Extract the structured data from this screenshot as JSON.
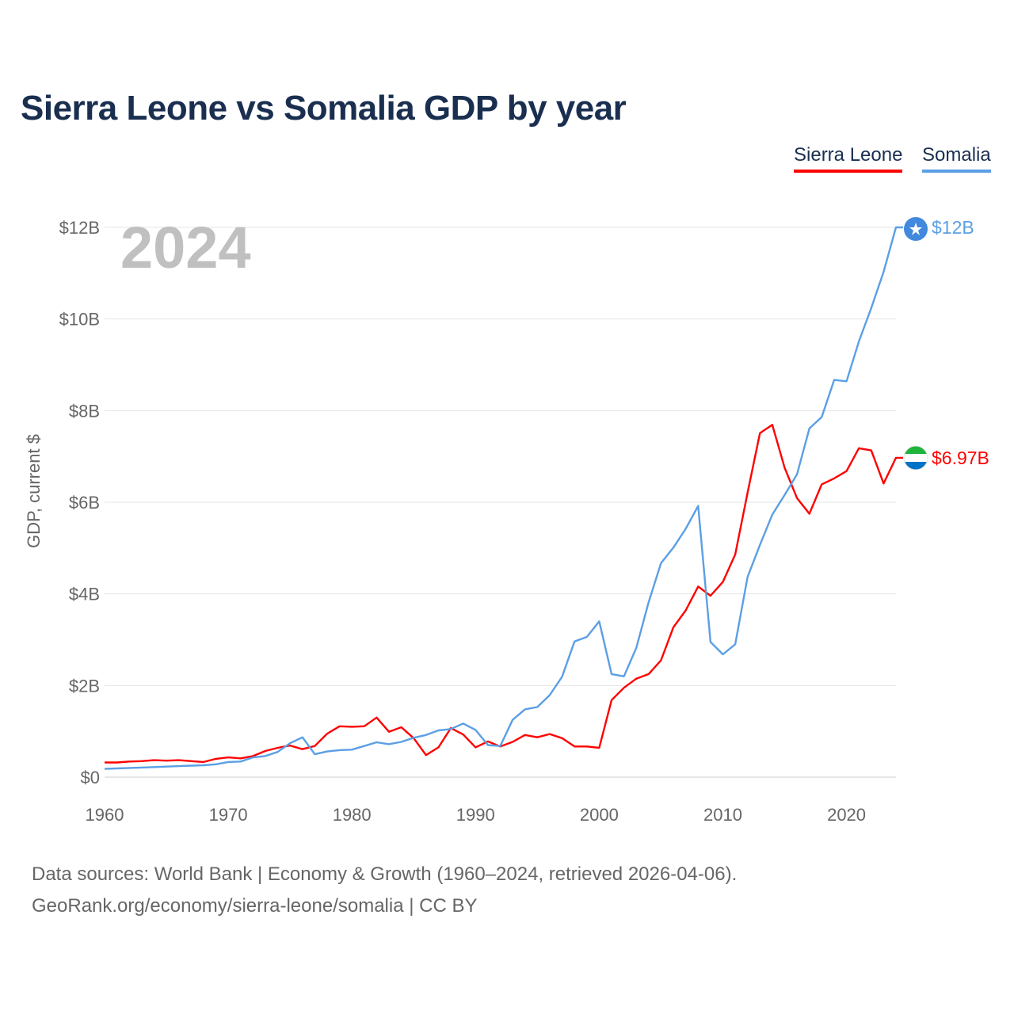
{
  "header": {
    "title": "Sierra Leone vs Somalia GDP by year"
  },
  "legend": [
    {
      "label": "Sierra Leone",
      "color": "#ff0000"
    },
    {
      "label": "Somalia",
      "color": "#5b9fe4"
    }
  ],
  "footer": {
    "source_line1": "Data sources: World Bank | Economy & Growth (1960–2024, retrieved 2026-04-06).",
    "source_line2": "GeoRank.org/economy/sierra-leone/somalia | CC BY"
  },
  "chart_data": {
    "type": "line",
    "title": "Sierra Leone vs Somalia GDP by year",
    "year_watermark": "2024",
    "xlabel": "",
    "ylabel": "GDP, current $",
    "xlim": [
      1960,
      2024
    ],
    "ylim": [
      0,
      12
    ],
    "y_unit": "billion USD",
    "x_ticks": [
      1960,
      1970,
      1980,
      1990,
      2000,
      2010,
      2020
    ],
    "y_ticks": [
      {
        "value": 0,
        "label": "$0"
      },
      {
        "value": 2,
        "label": "$2B"
      },
      {
        "value": 4,
        "label": "$4B"
      },
      {
        "value": 6,
        "label": "$6B"
      },
      {
        "value": 8,
        "label": "$8B"
      },
      {
        "value": 10,
        "label": "$10B"
      },
      {
        "value": 12,
        "label": "$12B"
      }
    ],
    "grid": true,
    "legend_position": "top-right",
    "x": [
      1960,
      1961,
      1962,
      1963,
      1964,
      1965,
      1966,
      1967,
      1968,
      1969,
      1970,
      1971,
      1972,
      1973,
      1974,
      1975,
      1976,
      1977,
      1978,
      1979,
      1980,
      1981,
      1982,
      1983,
      1984,
      1985,
      1986,
      1987,
      1988,
      1989,
      1990,
      1991,
      1992,
      1993,
      1994,
      1995,
      1996,
      1997,
      1998,
      1999,
      2000,
      2001,
      2002,
      2003,
      2004,
      2005,
      2006,
      2007,
      2008,
      2009,
      2010,
      2011,
      2012,
      2013,
      2014,
      2015,
      2016,
      2017,
      2018,
      2019,
      2020,
      2021,
      2022,
      2023,
      2024
    ],
    "series": [
      {
        "name": "Sierra Leone",
        "color": "#ff0000",
        "end_label": "$6.97B",
        "values": [
          0.32,
          0.32,
          0.34,
          0.35,
          0.37,
          0.36,
          0.37,
          0.35,
          0.33,
          0.4,
          0.43,
          0.41,
          0.46,
          0.57,
          0.64,
          0.69,
          0.61,
          0.68,
          0.95,
          1.11,
          1.1,
          1.11,
          1.3,
          0.99,
          1.09,
          0.85,
          0.48,
          0.65,
          1.07,
          0.93,
          0.65,
          0.78,
          0.67,
          0.77,
          0.92,
          0.87,
          0.94,
          0.85,
          0.67,
          0.67,
          0.64,
          1.68,
          1.95,
          2.15,
          2.25,
          2.55,
          3.27,
          3.64,
          4.16,
          3.96,
          4.26,
          4.86,
          6.21,
          7.51,
          7.69,
          6.75,
          6.09,
          5.75,
          6.39,
          6.52,
          6.68,
          7.18,
          7.13,
          6.41,
          6.97
        ]
      },
      {
        "name": "Somalia",
        "color": "#5b9fe4",
        "end_label": "$12B",
        "values": [
          0.18,
          0.19,
          0.2,
          0.21,
          0.22,
          0.23,
          0.24,
          0.25,
          0.26,
          0.28,
          0.33,
          0.34,
          0.43,
          0.46,
          0.55,
          0.74,
          0.87,
          0.5,
          0.56,
          0.59,
          0.6,
          0.68,
          0.76,
          0.72,
          0.77,
          0.86,
          0.92,
          1.02,
          1.05,
          1.17,
          1.03,
          0.7,
          0.68,
          1.25,
          1.48,
          1.53,
          1.79,
          2.19,
          2.96,
          3.06,
          3.4,
          2.25,
          2.2,
          2.82,
          3.82,
          4.67,
          5.01,
          5.42,
          5.92,
          2.95,
          2.68,
          2.9,
          4.37,
          5.07,
          5.73,
          6.16,
          6.61,
          7.61,
          7.86,
          8.67,
          8.64,
          9.51,
          10.24,
          11.03,
          12.0
        ]
      }
    ]
  }
}
